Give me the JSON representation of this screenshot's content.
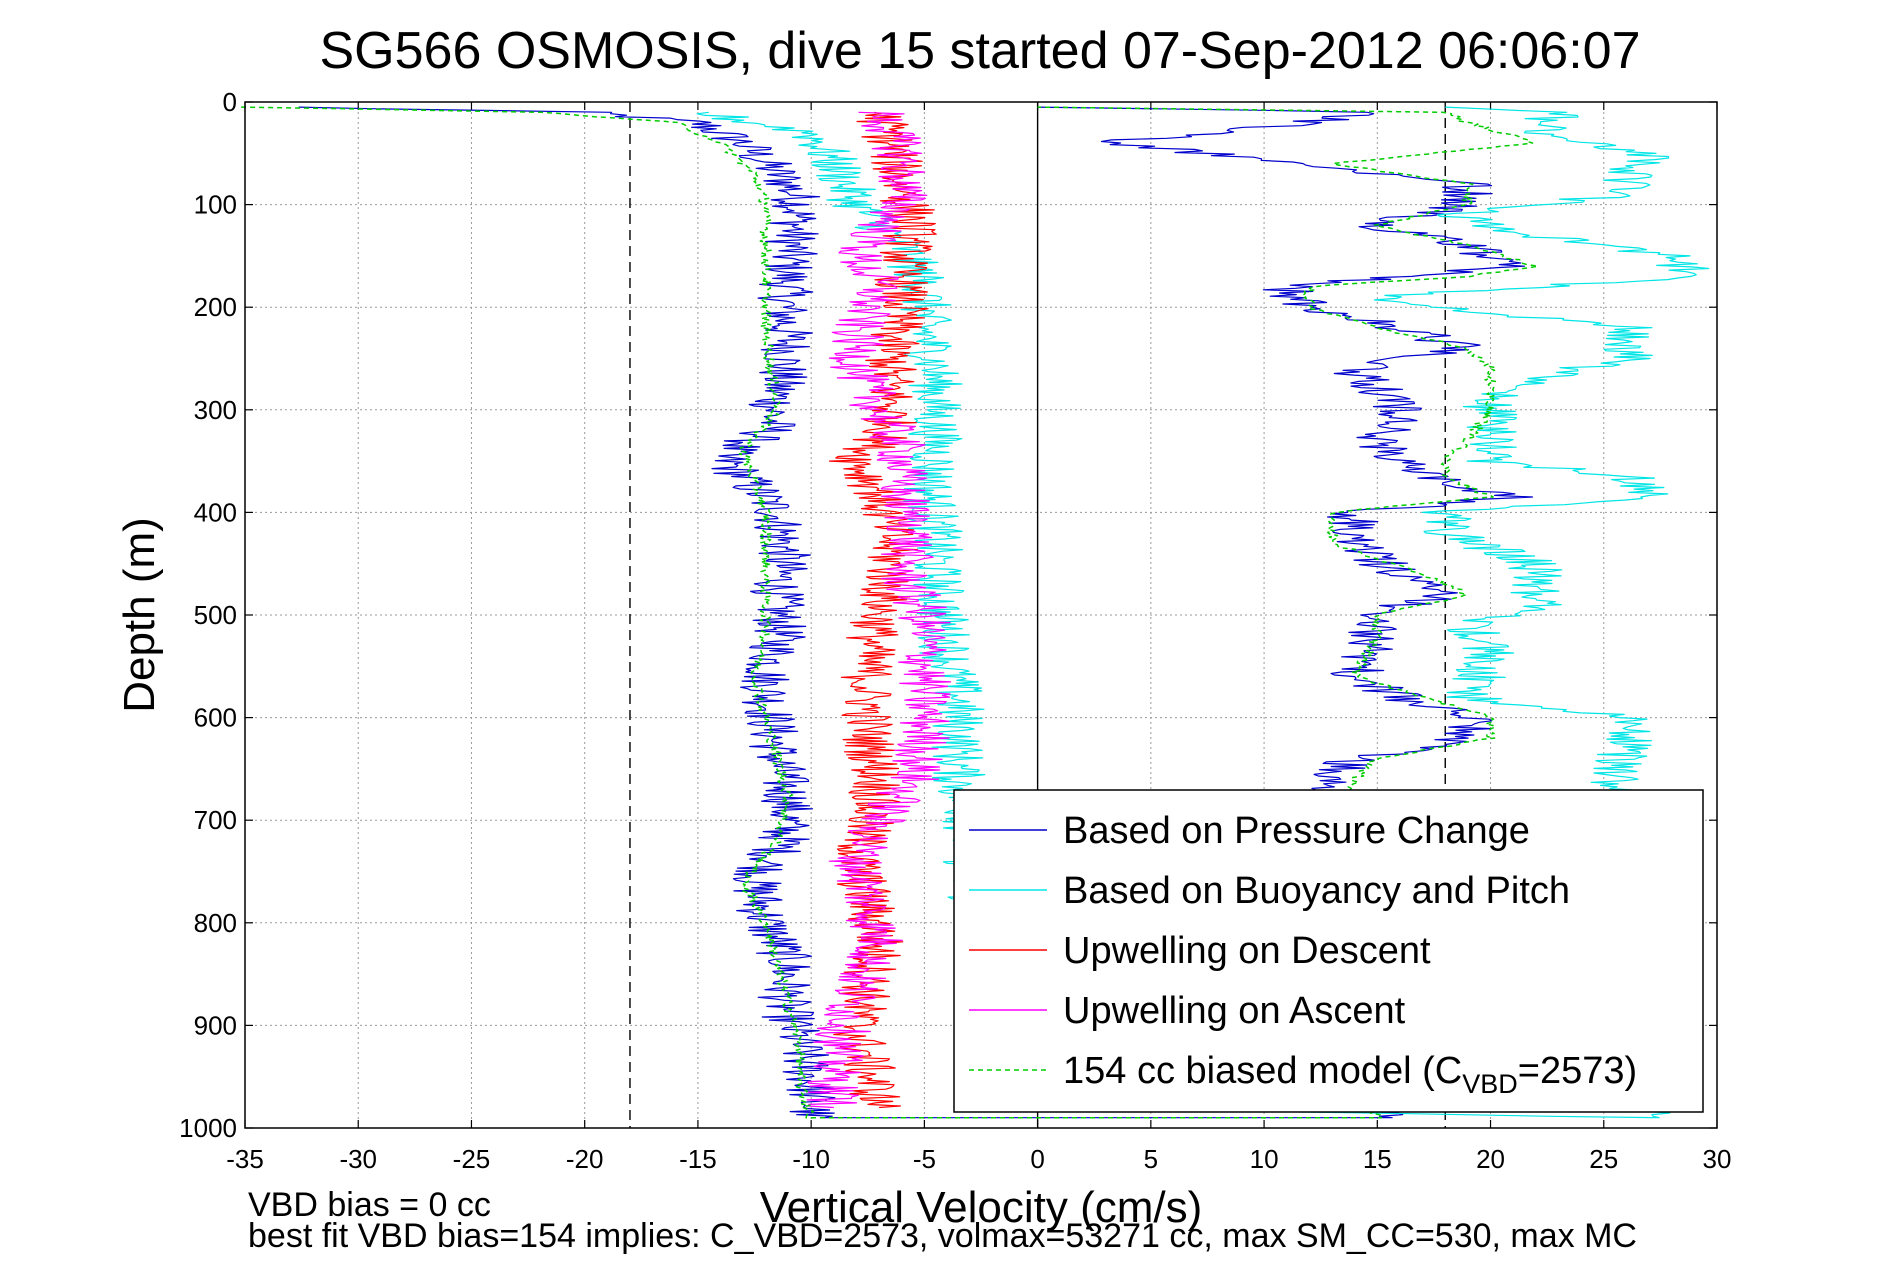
{
  "chart_data": {
    "type": "line",
    "title": "SG566 OSMOSIS, dive 15 started 07-Sep-2012 06:06:07",
    "xlabel": "Vertical Velocity (cm/s)",
    "ylabel": "Depth (m)",
    "xlim": [
      -35,
      30
    ],
    "ylim": [
      0,
      1000
    ],
    "y_reversed": true,
    "grid": true,
    "x_ticks": [
      -35,
      -30,
      -25,
      -20,
      -15,
      -10,
      -5,
      0,
      5,
      10,
      15,
      20,
      25,
      30
    ],
    "y_ticks": [
      0,
      100,
      200,
      300,
      400,
      500,
      600,
      700,
      800,
      900,
      1000
    ],
    "reference_lines": [
      {
        "x": -18,
        "style": "dashed"
      },
      {
        "x": 0,
        "style": "solid"
      },
      {
        "x": 18,
        "style": "dashed"
      }
    ],
    "legend_position": "bottom-right",
    "legend_subscript": "VBD",
    "series": [
      {
        "name": "Based on Pressure Change",
        "color": "#0000cc",
        "style": "solid",
        "points": [
          [
            -33,
            5
          ],
          [
            -20,
            10
          ],
          [
            -15,
            20
          ],
          [
            -13,
            40
          ],
          [
            -12,
            60
          ],
          [
            -11,
            80
          ],
          [
            -10.5,
            100
          ],
          [
            -10.8,
            130
          ],
          [
            -11,
            160
          ],
          [
            -11.2,
            200
          ],
          [
            -11,
            240
          ],
          [
            -11.5,
            280
          ],
          [
            -11.8,
            320
          ],
          [
            -14,
            345
          ],
          [
            -13,
            365
          ],
          [
            -11.5,
            400
          ],
          [
            -11.2,
            440
          ],
          [
            -11.5,
            480
          ],
          [
            -11.4,
            520
          ],
          [
            -12,
            560
          ],
          [
            -11.8,
            600
          ],
          [
            -11.5,
            640
          ],
          [
            -11,
            680
          ],
          [
            -11.2,
            720
          ],
          [
            -12.5,
            760
          ],
          [
            -12,
            800
          ],
          [
            -11,
            840
          ],
          [
            -11.2,
            880
          ],
          [
            -10.5,
            920
          ],
          [
            -10,
            960
          ],
          [
            -10,
            990
          ],
          [
            15,
            990
          ],
          [
            15,
            960
          ],
          [
            20,
            940
          ],
          [
            12,
            920
          ],
          [
            14,
            900
          ],
          [
            13,
            660
          ],
          [
            14,
            640
          ],
          [
            19,
            620
          ],
          [
            19,
            600
          ],
          [
            16,
            580
          ],
          [
            14,
            560
          ],
          [
            15,
            520
          ],
          [
            14.5,
            500
          ],
          [
            18,
            480
          ],
          [
            16,
            460
          ],
          [
            14,
            430
          ],
          [
            14,
            400
          ],
          [
            21,
            385
          ],
          [
            17,
            365
          ],
          [
            16,
            350
          ],
          [
            15,
            330
          ],
          [
            16,
            300
          ],
          [
            15,
            280
          ],
          [
            14,
            260
          ],
          [
            19,
            240
          ],
          [
            16,
            220
          ],
          [
            12,
            200
          ],
          [
            11,
            180
          ],
          [
            16,
            170
          ],
          [
            21,
            160
          ],
          [
            19,
            140
          ],
          [
            15,
            120
          ],
          [
            19,
            100
          ],
          [
            19,
            80
          ],
          [
            12,
            60
          ],
          [
            3,
            40
          ],
          [
            12,
            20
          ],
          [
            14,
            10
          ],
          [
            0,
            5
          ]
        ]
      },
      {
        "name": "Based on Buoyancy and Pitch",
        "color": "#00e5e5",
        "style": "solid",
        "points": [
          [
            -15,
            10
          ],
          [
            -10,
            30
          ],
          [
            -9,
            60
          ],
          [
            -8,
            100
          ],
          [
            -6,
            140
          ],
          [
            -5,
            180
          ],
          [
            -5,
            220
          ],
          [
            -4.5,
            260
          ],
          [
            -4.5,
            300
          ],
          [
            -4.5,
            340
          ],
          [
            -4.8,
            380
          ],
          [
            -4.5,
            420
          ],
          [
            -4.5,
            460
          ],
          [
            -4.2,
            500
          ],
          [
            -4,
            540
          ],
          [
            -3.5,
            580
          ],
          [
            -3.5,
            620
          ],
          [
            -3.5,
            660
          ],
          [
            -3,
            700
          ],
          [
            -3,
            760
          ],
          [
            -2.5,
            820
          ],
          [
            -2.5,
            880
          ],
          [
            -2,
            940
          ],
          [
            -2,
            980
          ],
          [
            27,
            990
          ],
          [
            28,
            970
          ],
          [
            20,
            950
          ],
          [
            26,
            630
          ],
          [
            26,
            600
          ],
          [
            19,
            580
          ],
          [
            20,
            540
          ],
          [
            19,
            510
          ],
          [
            22,
            490
          ],
          [
            22,
            450
          ],
          [
            18,
            420
          ],
          [
            18,
            400
          ],
          [
            27,
            385
          ],
          [
            26,
            365
          ],
          [
            20,
            350
          ],
          [
            20,
            320
          ],
          [
            20,
            300
          ],
          [
            20,
            280
          ],
          [
            26,
            250
          ],
          [
            26,
            220
          ],
          [
            20,
            205
          ],
          [
            18,
            200
          ],
          [
            15,
            190
          ],
          [
            29,
            170
          ],
          [
            28,
            150
          ],
          [
            22,
            130
          ],
          [
            18,
            110
          ],
          [
            26,
            90
          ],
          [
            26,
            70
          ],
          [
            27,
            50
          ],
          [
            22,
            30
          ],
          [
            23,
            10
          ],
          [
            18,
            5
          ]
        ]
      },
      {
        "name": "Upwelling on Descent",
        "color": "#ff0000",
        "style": "solid",
        "points": [
          [
            -7,
            10
          ],
          [
            -6.5,
            40
          ],
          [
            -6,
            80
          ],
          [
            -5.5,
            120
          ],
          [
            -6,
            160
          ],
          [
            -6,
            200
          ],
          [
            -6.5,
            240
          ],
          [
            -6.5,
            280
          ],
          [
            -6.5,
            320
          ],
          [
            -8,
            350
          ],
          [
            -7,
            380
          ],
          [
            -6.5,
            420
          ],
          [
            -6.5,
            460
          ],
          [
            -7,
            500
          ],
          [
            -7.5,
            540
          ],
          [
            -7.5,
            580
          ],
          [
            -7.5,
            620
          ],
          [
            -7,
            660
          ],
          [
            -7.5,
            700
          ],
          [
            -8,
            740
          ],
          [
            -7.5,
            780
          ],
          [
            -7,
            820
          ],
          [
            -7.5,
            860
          ],
          [
            -8,
            900
          ],
          [
            -7.5,
            940
          ],
          [
            -7,
            980
          ]
        ]
      },
      {
        "name": "Upwelling on Ascent",
        "color": "#ff00ff",
        "style": "solid",
        "points": [
          [
            -7,
            10
          ],
          [
            -6,
            50
          ],
          [
            -6,
            100
          ],
          [
            -8,
            150
          ],
          [
            -7,
            180
          ],
          [
            -8,
            220
          ],
          [
            -8,
            260
          ],
          [
            -7,
            300
          ],
          [
            -6,
            340
          ],
          [
            -6,
            380
          ],
          [
            -5.5,
            420
          ],
          [
            -6,
            460
          ],
          [
            -5,
            500
          ],
          [
            -5,
            540
          ],
          [
            -5,
            580
          ],
          [
            -5,
            620
          ],
          [
            -5.5,
            660
          ],
          [
            -7,
            700
          ],
          [
            -8,
            740
          ],
          [
            -7.5,
            780
          ],
          [
            -7,
            820
          ],
          [
            -8,
            860
          ],
          [
            -8.5,
            900
          ],
          [
            -9,
            940
          ],
          [
            -9,
            980
          ]
        ]
      },
      {
        "name": "154 cc biased model (C_VBD=2573)",
        "label_main": "154 cc biased model (C",
        "label_sub": "VBD",
        "label_tail": "=2573)",
        "color": "#00cc00",
        "style": "dashed",
        "points": [
          [
            -35,
            5
          ],
          [
            -22,
            10
          ],
          [
            -16,
            20
          ],
          [
            -14,
            40
          ],
          [
            -12.5,
            70
          ],
          [
            -12,
            100
          ],
          [
            -12,
            140
          ],
          [
            -12,
            180
          ],
          [
            -12,
            220
          ],
          [
            -11.8,
            260
          ],
          [
            -11.5,
            300
          ],
          [
            -13,
            340
          ],
          [
            -12.5,
            370
          ],
          [
            -12,
            400
          ],
          [
            -12,
            440
          ],
          [
            -12,
            480
          ],
          [
            -12,
            520
          ],
          [
            -12.5,
            560
          ],
          [
            -12,
            600
          ],
          [
            -11.5,
            640
          ],
          [
            -11,
            680
          ],
          [
            -11.5,
            720
          ],
          [
            -13,
            760
          ],
          [
            -12,
            800
          ],
          [
            -11.5,
            840
          ],
          [
            -11,
            880
          ],
          [
            -10.5,
            920
          ],
          [
            -10.5,
            960
          ],
          [
            -10,
            990
          ],
          [
            15,
            990
          ],
          [
            14,
            960
          ],
          [
            12,
            940
          ],
          [
            14,
            660
          ],
          [
            15,
            640
          ],
          [
            20,
            620
          ],
          [
            20,
            600
          ],
          [
            17,
            580
          ],
          [
            14,
            560
          ],
          [
            15,
            520
          ],
          [
            15,
            500
          ],
          [
            19,
            480
          ],
          [
            17,
            460
          ],
          [
            13,
            430
          ],
          [
            13,
            400
          ],
          [
            20,
            385
          ],
          [
            18,
            365
          ],
          [
            18,
            350
          ],
          [
            19,
            330
          ],
          [
            20,
            300
          ],
          [
            20,
            280
          ],
          [
            20,
            260
          ],
          [
            19,
            240
          ],
          [
            15,
            220
          ],
          [
            12,
            200
          ],
          [
            12,
            180
          ],
          [
            19,
            170
          ],
          [
            22,
            160
          ],
          [
            19,
            140
          ],
          [
            15,
            120
          ],
          [
            19,
            100
          ],
          [
            19,
            80
          ],
          [
            13,
            60
          ],
          [
            22,
            40
          ],
          [
            19,
            20
          ],
          [
            18,
            10
          ],
          [
            0,
            5
          ]
        ]
      }
    ],
    "annotations": [
      "VBD bias = 0 cc",
      "best fit VBD bias=154 implies: C_VBD=2573, volmax=53271 cc, max SM_CC=530, max MC"
    ]
  }
}
